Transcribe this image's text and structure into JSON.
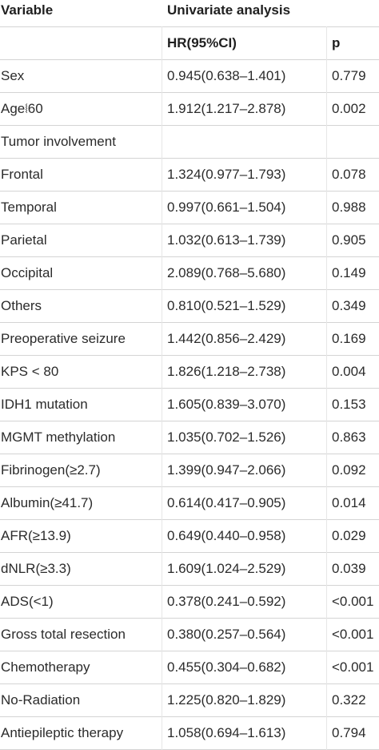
{
  "header": {
    "variable": "Variable",
    "univariate": "Univariate analysis",
    "hr": "HR(95%CI)",
    "p": "p"
  },
  "rows": [
    {
      "variable": "Sex",
      "hr": "0.945(0.638–1.401)",
      "p": "0.779"
    },
    {
      "variable": "Age⧙60",
      "hr": "1.912(1.217–2.878)",
      "p": "0.002"
    },
    {
      "variable": "Tumor involvement",
      "hr": "",
      "p": ""
    },
    {
      "variable": "Frontal",
      "hr": "1.324(0.977–1.793)",
      "p": "0.078"
    },
    {
      "variable": "Temporal",
      "hr": "0.997(0.661–1.504)",
      "p": "0.988"
    },
    {
      "variable": "Parietal",
      "hr": "1.032(0.613–1.739)",
      "p": "0.905"
    },
    {
      "variable": "Occipital",
      "hr": "2.089(0.768–5.680)",
      "p": "0.149"
    },
    {
      "variable": "Others",
      "hr": "0.810(0.521–1.529)",
      "p": "0.349"
    },
    {
      "variable": "Preoperative seizure",
      "hr": "1.442(0.856–2.429)",
      "p": "0.169"
    },
    {
      "variable": "KPS < 80",
      "hr": "1.826(1.218–2.738)",
      "p": "0.004"
    },
    {
      "variable": "IDH1 mutation",
      "hr": "1.605(0.839–3.070)",
      "p": "0.153"
    },
    {
      "variable": "MGMT methylation",
      "hr": "1.035(0.702–1.526)",
      "p": "0.863"
    },
    {
      "variable": "Fibrinogen(≥2.7)",
      "hr": "1.399(0.947–2.066)",
      "p": "0.092"
    },
    {
      "variable": "Albumin(≥41.7)",
      "hr": "0.614(0.417–0.905)",
      "p": "0.014"
    },
    {
      "variable": "AFR(≥13.9)",
      "hr": "0.649(0.440–0.958)",
      "p": "0.029"
    },
    {
      "variable": "dNLR(≥3.3)",
      "hr": "1.609(1.024–2.529)",
      "p": "0.039"
    },
    {
      "variable": "ADS(<1)",
      "hr": "0.378(0.241–0.592)",
      "p": "<0.001"
    },
    {
      "variable": "Gross total resection",
      "hr": "0.380(0.257–0.564)",
      "p": "<0.001"
    },
    {
      "variable": "Chemotherapy",
      "hr": "0.455(0.304–0.682)",
      "p": "<0.001"
    },
    {
      "variable": "No-Radiation",
      "hr": "1.225(0.820–1.829)",
      "p": "0.322"
    },
    {
      "variable": "Antiepileptic therapy",
      "hr": "1.058(0.694–1.613)",
      "p": "0.794"
    }
  ]
}
